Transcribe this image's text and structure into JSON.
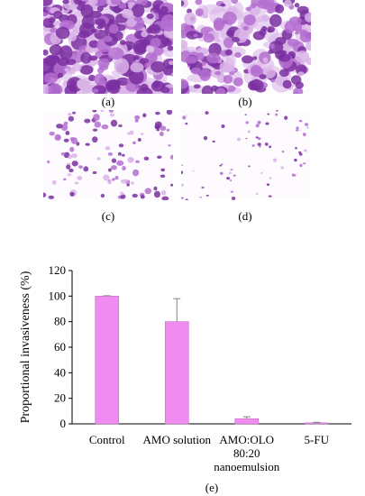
{
  "panels": [
    {
      "label": "(a)",
      "density": "very-dense"
    },
    {
      "label": "(b)",
      "density": "dense"
    },
    {
      "label": "(c)",
      "density": "sparse"
    },
    {
      "label": "(d)",
      "density": "very-sparse"
    }
  ],
  "colors": {
    "cell_dark": "#7a2fa0",
    "cell_mid": "#b46fd0",
    "cell_light": "#d9b3e8",
    "bar_fill": "#f08cf0",
    "bar_stroke": "#c070c0",
    "axis": "#000000",
    "error_bar": "#808080"
  },
  "chart_data": {
    "type": "bar",
    "categories": [
      "Control",
      "AMO solution",
      "AMO:OLO 80:20 nanoemulsion",
      "5-FU"
    ],
    "category_lines": [
      [
        "Control"
      ],
      [
        "AMO solution"
      ],
      [
        "AMO:OLO",
        "80:20",
        "nanoemulsion"
      ],
      [
        "5-FU"
      ]
    ],
    "values": [
      100,
      80,
      4,
      0.8
    ],
    "errors": [
      0.3,
      18,
      1.5,
      0.4
    ],
    "ylabel": "Proportional invasiveness (%)",
    "ylim": [
      0,
      120
    ],
    "yticks": [
      0,
      20,
      40,
      60,
      80,
      100,
      120
    ],
    "grid": false,
    "panel_label": "(e)"
  }
}
